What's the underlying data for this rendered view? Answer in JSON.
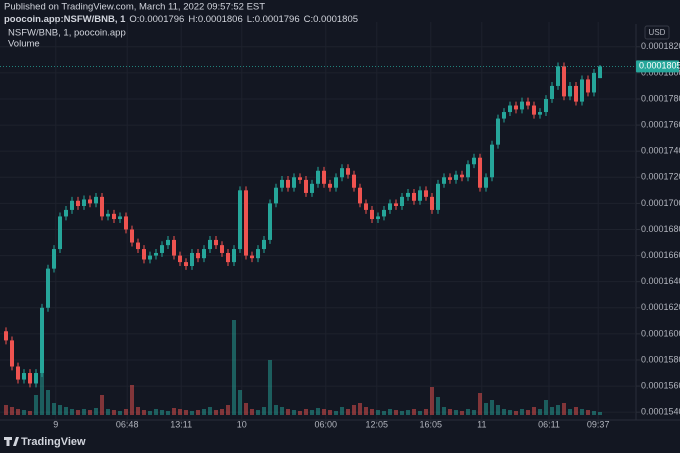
{
  "header": {
    "published": "Published on TradingView.com, March 11, 2022 09:57:52 EST",
    "symbol": "poocoin.app:NSFW/BNB, 1",
    "ohlc_labels": [
      "O:",
      "H:",
      "L:",
      "C:"
    ]
  },
  "footer": {
    "brand": "TradingView"
  },
  "chart_data": {
    "type": "candlestick",
    "title": "NSFW/BNB, 1, poocoin.app",
    "volume_label": "Volume",
    "currency": "USD",
    "up_color": "#26a69a",
    "down_color": "#ef5350",
    "volume_up_color": "#26a69a80",
    "volume_down_color": "#ef535080",
    "last_price_color": "#26a69a",
    "grid": true,
    "xlim": [
      -1,
      105
    ],
    "xticks": [
      {
        "value": 8.3,
        "label": "9"
      },
      {
        "value": 20.2,
        "label": "06:48"
      },
      {
        "value": 29.2,
        "label": "13:11"
      },
      {
        "value": 39.3,
        "label": "10"
      },
      {
        "value": 53.3,
        "label": "06:00"
      },
      {
        "value": 61.8,
        "label": "12:05"
      },
      {
        "value": 70.8,
        "label": "16:05"
      },
      {
        "value": 79.3,
        "label": "11"
      },
      {
        "value": 90.5,
        "label": "06:11"
      },
      {
        "value": 98.7,
        "label": "09:37"
      }
    ],
    "ylim": [
      0.0001534,
      0.0001839
    ],
    "yticks": [
      {
        "value": 0.000154,
        "label": "0.0001540"
      },
      {
        "value": 0.000156,
        "label": "0.0001560"
      },
      {
        "value": 0.000158,
        "label": "0.0001580"
      },
      {
        "value": 0.00016,
        "label": "0.0001600"
      },
      {
        "value": 0.000162,
        "label": "0.0001620"
      },
      {
        "value": 0.000164,
        "label": "0.0001640"
      },
      {
        "value": 0.000166,
        "label": "0.0001660"
      },
      {
        "value": 0.000168,
        "label": "0.0001680"
      },
      {
        "value": 0.00017,
        "label": "0.0001700"
      },
      {
        "value": 0.000172,
        "label": "0.0001720"
      },
      {
        "value": 0.000174,
        "label": "0.0001740"
      },
      {
        "value": 0.000176,
        "label": "0.0001760"
      },
      {
        "value": 0.000178,
        "label": "0.0001780"
      },
      {
        "value": 0.00018,
        "label": "0.0001800"
      },
      {
        "value": 0.000182,
        "label": "0.0001820"
      }
    ],
    "vlim": [
      0,
      100
    ],
    "open": [
      0.0001602,
      0.0001595,
      0.0001575,
      0.0001565,
      0.000157,
      0.0001562,
      0.000157,
      0.000162,
      0.000165,
      0.0001665,
      0.000169,
      0.0001695,
      0.0001702,
      0.0001698,
      0.0001703,
      0.00017,
      0.0001705,
      0.000169,
      0.0001692,
      0.0001688,
      0.000169,
      0.000168,
      0.000167,
      0.0001665,
      0.0001657,
      0.000166,
      0.0001662,
      0.0001668,
      0.0001672,
      0.000166,
      0.0001655,
      0.0001652,
      0.0001662,
      0.0001658,
      0.0001665,
      0.0001672,
      0.0001668,
      0.0001662,
      0.0001655,
      0.0001665,
      0.000171,
      0.000166,
      0.0001658,
      0.0001665,
      0.0001672,
      0.00017,
      0.0001712,
      0.0001718,
      0.0001712,
      0.000172,
      0.0001718,
      0.0001708,
      0.0001715,
      0.0001725,
      0.0001715,
      0.0001712,
      0.000172,
      0.0001727,
      0.0001722,
      0.0001712,
      0.00017,
      0.0001695,
      0.0001688,
      0.000169,
      0.0001695,
      0.00017,
      0.0001698,
      0.0001705,
      0.0001708,
      0.0001702,
      0.000171,
      0.0001705,
      0.0001695,
      0.0001715,
      0.000172,
      0.0001718,
      0.0001722,
      0.000172,
      0.000173,
      0.0001735,
      0.0001712,
      0.000172,
      0.0001745,
      0.0001765,
      0.000177,
      0.0001775,
      0.0001772,
      0.0001778,
      0.0001775,
      0.0001768,
      0.000177,
      0.000178,
      0.000179,
      0.0001805,
      0.0001782,
      0.000179,
      0.0001778,
      0.0001795,
      0.0001785,
      0.0001796
    ],
    "high": [
      0.0001605,
      0.0001598,
      0.0001578,
      0.0001573,
      0.0001573,
      0.0001573,
      0.0001623,
      0.0001653,
      0.0001668,
      0.0001693,
      0.0001698,
      0.0001705,
      0.0001705,
      0.0001706,
      0.0001706,
      0.0001708,
      0.0001708,
      0.0001695,
      0.0001695,
      0.0001693,
      0.0001693,
      0.0001683,
      0.0001673,
      0.0001668,
      0.0001663,
      0.0001665,
      0.0001671,
      0.0001675,
      0.0001675,
      0.0001663,
      0.0001658,
      0.0001665,
      0.0001665,
      0.0001668,
      0.0001675,
      0.0001675,
      0.0001671,
      0.0001665,
      0.0001668,
      0.0001713,
      0.0001713,
      0.0001663,
      0.0001668,
      0.0001675,
      0.0001703,
      0.0001715,
      0.0001721,
      0.0001721,
      0.0001723,
      0.0001723,
      0.0001721,
      0.0001718,
      0.0001728,
      0.0001728,
      0.0001718,
      0.0001723,
      0.000173,
      0.000173,
      0.0001725,
      0.0001715,
      0.0001703,
      0.0001698,
      0.0001693,
      0.0001698,
      0.0001703,
      0.0001703,
      0.0001708,
      0.0001711,
      0.0001711,
      0.0001713,
      0.0001713,
      0.0001708,
      0.0001718,
      0.0001723,
      0.0001723,
      0.0001725,
      0.0001725,
      0.0001733,
      0.0001738,
      0.0001738,
      0.0001723,
      0.0001748,
      0.0001768,
      0.0001773,
      0.0001778,
      0.0001778,
      0.0001781,
      0.0001781,
      0.0001778,
      0.0001773,
      0.0001783,
      0.0001793,
      0.0001808,
      0.0001808,
      0.0001793,
      0.0001793,
      0.0001798,
      0.0001798,
      0.0001803,
      0.0001806
    ],
    "low": [
      0.0001592,
      0.0001572,
      0.0001562,
      0.0001562,
      0.0001559,
      0.0001559,
      0.0001567,
      0.0001617,
      0.0001647,
      0.0001662,
      0.0001687,
      0.0001692,
      0.0001695,
      0.0001695,
      0.0001697,
      0.0001697,
      0.0001687,
      0.0001687,
      0.0001685,
      0.0001685,
      0.0001677,
      0.0001667,
      0.0001662,
      0.0001654,
      0.0001654,
      0.0001657,
      0.0001659,
      0.0001665,
      0.0001657,
      0.0001652,
      0.0001649,
      0.0001649,
      0.0001655,
      0.0001655,
      0.0001662,
      0.0001665,
      0.0001659,
      0.0001652,
      0.0001652,
      0.0001662,
      0.0001657,
      0.0001655,
      0.0001655,
      0.0001662,
      0.0001669,
      0.0001697,
      0.0001709,
      0.0001709,
      0.0001709,
      0.0001715,
      0.0001705,
      0.0001705,
      0.0001712,
      0.0001712,
      0.0001709,
      0.0001709,
      0.0001717,
      0.0001719,
      0.0001709,
      0.0001697,
      0.0001692,
      0.0001685,
      0.0001685,
      0.0001687,
      0.0001692,
      0.0001695,
      0.0001695,
      0.0001702,
      0.0001699,
      0.0001699,
      0.0001702,
      0.0001692,
      0.0001692,
      0.0001712,
      0.0001715,
      0.0001715,
      0.0001717,
      0.0001717,
      0.0001727,
      0.0001709,
      0.0001709,
      0.0001717,
      0.0001742,
      0.0001762,
      0.0001767,
      0.0001769,
      0.0001769,
      0.0001772,
      0.0001765,
      0.0001765,
      0.0001767,
      0.0001777,
      0.0001787,
      0.0001779,
      0.0001779,
      0.0001775,
      0.0001775,
      0.0001782,
      0.0001782,
      0.0001796
    ],
    "close": [
      0.0001595,
      0.0001575,
      0.0001565,
      0.000157,
      0.0001562,
      0.000157,
      0.000162,
      0.000165,
      0.0001665,
      0.000169,
      0.0001695,
      0.0001702,
      0.0001698,
      0.0001703,
      0.00017,
      0.0001705,
      0.000169,
      0.0001692,
      0.0001688,
      0.000169,
      0.000168,
      0.000167,
      0.0001665,
      0.0001657,
      0.000166,
      0.0001662,
      0.0001668,
      0.0001672,
      0.000166,
      0.0001655,
      0.0001652,
      0.0001662,
      0.0001658,
      0.0001665,
      0.0001672,
      0.0001668,
      0.0001662,
      0.0001655,
      0.0001665,
      0.000171,
      0.000166,
      0.0001658,
      0.0001665,
      0.0001672,
      0.00017,
      0.0001712,
      0.0001718,
      0.0001712,
      0.000172,
      0.0001718,
      0.0001708,
      0.0001715,
      0.0001725,
      0.0001715,
      0.0001712,
      0.000172,
      0.0001727,
      0.0001722,
      0.0001712,
      0.00017,
      0.0001695,
      0.0001688,
      0.000169,
      0.0001695,
      0.00017,
      0.0001698,
      0.0001705,
      0.0001708,
      0.0001702,
      0.000171,
      0.0001705,
      0.0001695,
      0.0001715,
      0.000172,
      0.0001718,
      0.0001722,
      0.000172,
      0.000173,
      0.0001735,
      0.0001712,
      0.000172,
      0.0001745,
      0.0001765,
      0.000177,
      0.0001775,
      0.0001772,
      0.0001778,
      0.0001775,
      0.0001768,
      0.000177,
      0.000178,
      0.000179,
      0.0001805,
      0.0001782,
      0.000179,
      0.0001778,
      0.0001795,
      0.0001785,
      0.00018,
      0.0001805
    ],
    "volume": [
      10,
      8,
      6,
      5,
      4,
      20,
      90,
      25,
      12,
      10,
      8,
      6,
      5,
      6,
      5,
      7,
      20,
      6,
      5,
      4,
      6,
      30,
      8,
      5,
      4,
      6,
      5,
      4,
      7,
      6,
      5,
      4,
      5,
      6,
      8,
      5,
      6,
      10,
      95,
      25,
      12,
      6,
      5,
      8,
      55,
      10,
      8,
      6,
      5,
      4,
      6,
      5,
      7,
      6,
      5,
      4,
      8,
      6,
      10,
      12,
      8,
      6,
      5,
      4,
      6,
      5,
      4,
      5,
      6,
      4,
      6,
      28,
      18,
      8,
      6,
      5,
      4,
      6,
      5,
      22,
      12,
      15,
      10,
      6,
      5,
      4,
      6,
      5,
      8,
      6,
      15,
      8,
      10,
      12,
      6,
      8,
      6,
      5,
      4,
      3
    ]
  }
}
